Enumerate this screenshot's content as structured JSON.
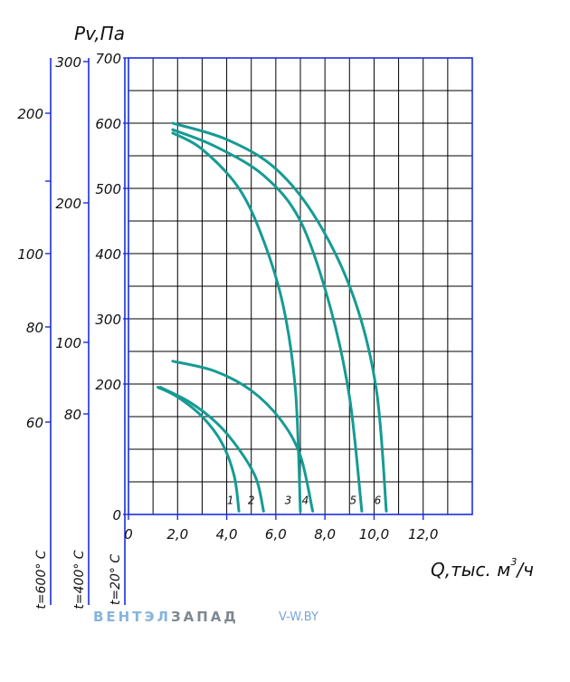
{
  "chart_data": {
    "type": "line",
    "ylabel": "Pv,Па",
    "xlabel_main": "Q,тыс. м",
    "xlabel_sup": "3",
    "xlabel_end": "/ч",
    "xlim": [
      0,
      14
    ],
    "ylim": [
      0,
      700
    ],
    "x_ticks": [
      "0",
      "2,0",
      "4,0",
      "6,0",
      "8,0",
      "10,0",
      "12,0"
    ],
    "y_ticks": [
      "0",
      "200",
      "300",
      "400",
      "500",
      "600",
      "700"
    ],
    "aux_axes": [
      {
        "label": "t=20° С"
      },
      {
        "label": "t=400° С",
        "ticks": [
          "80",
          "100",
          "200",
          "300"
        ]
      },
      {
        "label": "t=600° С",
        "ticks": [
          "60",
          "80",
          "100",
          "200"
        ]
      }
    ],
    "grid": true,
    "colors": {
      "curve": "#159b94",
      "axis": "#1a2de0",
      "grid": "#000000"
    },
    "series": [
      {
        "name": "1",
        "points": [
          [
            1.2,
            195
          ],
          [
            2.0,
            180
          ],
          [
            3.0,
            150
          ],
          [
            3.8,
            110
          ],
          [
            4.3,
            60
          ],
          [
            4.5,
            5
          ]
        ]
      },
      {
        "name": "2",
        "points": [
          [
            1.3,
            195
          ],
          [
            2.5,
            172
          ],
          [
            3.6,
            140
          ],
          [
            4.5,
            100
          ],
          [
            5.2,
            55
          ],
          [
            5.5,
            5
          ]
        ]
      },
      {
        "name": "4",
        "points": [
          [
            1.8,
            235
          ],
          [
            3.5,
            220
          ],
          [
            5.0,
            190
          ],
          [
            6.2,
            145
          ],
          [
            7.0,
            90
          ],
          [
            7.5,
            5
          ]
        ]
      },
      {
        "name": "3",
        "points": [
          [
            1.8,
            585
          ],
          [
            3.0,
            560
          ],
          [
            4.5,
            500
          ],
          [
            5.5,
            420
          ],
          [
            6.3,
            320
          ],
          [
            6.8,
            190
          ],
          [
            7.0,
            5
          ]
        ]
      },
      {
        "name": "5",
        "points": [
          [
            1.8,
            590
          ],
          [
            3.5,
            565
          ],
          [
            5.5,
            520
          ],
          [
            7.0,
            450
          ],
          [
            8.2,
            320
          ],
          [
            9.0,
            180
          ],
          [
            9.5,
            5
          ]
        ]
      },
      {
        "name": "6",
        "points": [
          [
            1.8,
            600
          ],
          [
            4.0,
            575
          ],
          [
            6.0,
            530
          ],
          [
            7.7,
            450
          ],
          [
            9.2,
            330
          ],
          [
            10.1,
            190
          ],
          [
            10.5,
            5
          ]
        ]
      }
    ],
    "curve_labels": [
      "1",
      "2",
      "3",
      "4",
      "5",
      "6"
    ]
  },
  "brand": {
    "part1": "ВЕНТЭЛ",
    "part2": "ЗАПАД",
    "site": "V-W.BY"
  }
}
